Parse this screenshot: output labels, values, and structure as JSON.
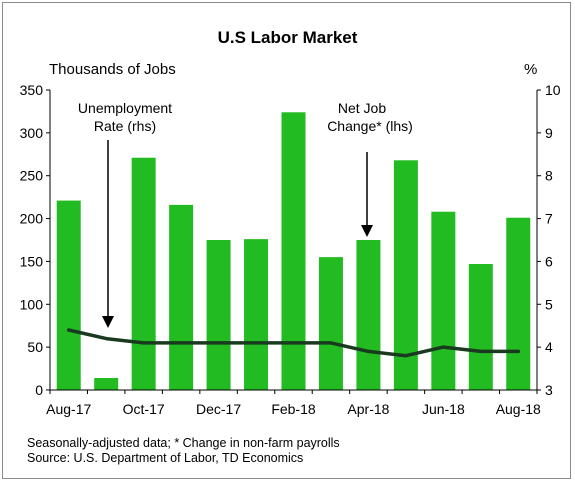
{
  "chart_data": {
    "type": "bar+line",
    "title": "U.S Labor Market",
    "ylabel_left": "Thousands of Jobs",
    "ylabel_right": "%",
    "ylim_left": [
      0,
      350
    ],
    "yticks_left": [
      0,
      50,
      100,
      150,
      200,
      250,
      300,
      350
    ],
    "ylim_right": [
      3,
      10
    ],
    "yticks_right": [
      3,
      4,
      5,
      6,
      7,
      8,
      9,
      10
    ],
    "categories": [
      "Aug-17",
      "Sep-17",
      "Oct-17",
      "Nov-17",
      "Dec-17",
      "Jan-18",
      "Feb-18",
      "Mar-18",
      "Apr-18",
      "May-18",
      "Jun-18",
      "Jul-18",
      "Aug-18"
    ],
    "x_tick_labels": [
      "Aug-17",
      "Oct-17",
      "Dec-17",
      "Feb-18",
      "Apr-18",
      "Jun-18",
      "Aug-18"
    ],
    "series": [
      {
        "name": "Net Job Change* (lhs)",
        "kind": "bar",
        "axis": "left",
        "color": "#22bb22",
        "values": [
          221,
          14,
          271,
          216,
          175,
          176,
          324,
          155,
          175,
          268,
          208,
          147,
          201
        ]
      },
      {
        "name": "Unemployment Rate (rhs)",
        "kind": "line",
        "axis": "right",
        "color": "#1a3a1f",
        "values": [
          4.4,
          4.2,
          4.1,
          4.1,
          4.1,
          4.1,
          4.1,
          4.1,
          3.9,
          3.8,
          4.0,
          3.9,
          3.9
        ]
      }
    ],
    "annotations": [
      {
        "text_lines": [
          "Unemployment",
          "Rate (rhs)"
        ],
        "points_to": "Unemployment Rate (rhs)"
      },
      {
        "text_lines": [
          "Net Job",
          "Change* (lhs)"
        ],
        "points_to": "Net Job Change* (lhs)"
      }
    ],
    "grid": false,
    "legend": "none"
  },
  "footnotes": [
    "Seasonally-adjusted data; * Change in non-farm payrolls",
    "Source: U.S. Department of Labor, TD Economics"
  ]
}
